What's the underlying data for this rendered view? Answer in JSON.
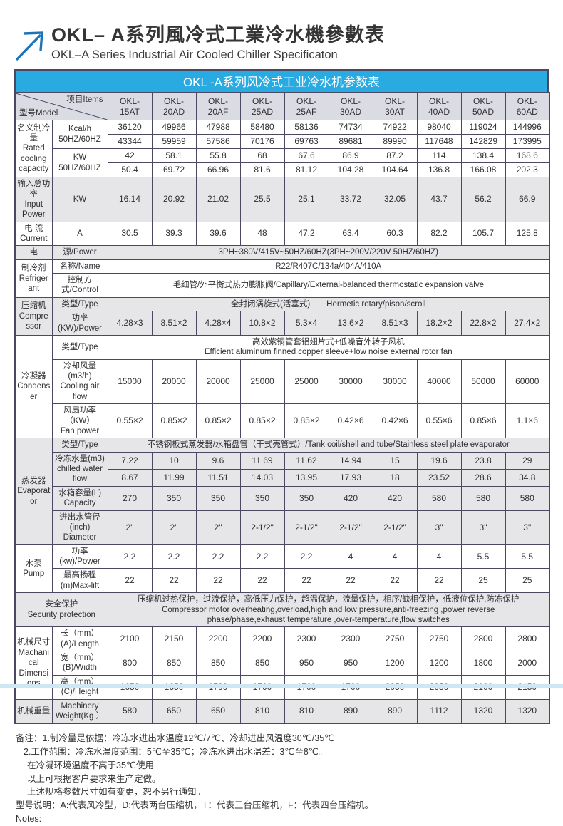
{
  "page": {
    "title_zh": "OKL– A系列風冷式工業冷水機參數表",
    "title_en": "OKL–A Series Industrial Air Cooled Chiller Specificaton"
  },
  "colors": {
    "accent_cyan": "#29abe2",
    "logo_blue": "#1b75bc",
    "header_row_gray": "#dbdce3",
    "section_gray": "#e6e6e8",
    "border": "#4b4961",
    "bottom_strip": "#cfe7f5"
  },
  "table": {
    "caption": "OKL -A系列风冷式工业冷水机参数表",
    "corner": {
      "model": "型号Model",
      "items": "项目Items"
    },
    "models": [
      "OKL-15AT",
      "OKL-20AD",
      "OKL-20AF",
      "OKL-25AD",
      "OKL-25AF",
      "OKL-30AD",
      "OKL-30AT",
      "OKL-40AD",
      "OKL-50AD",
      "OKL-60AD"
    ],
    "sections": [
      {
        "bg": "w",
        "group": "名义制冷量\nRated\ncooling\ncapacity",
        "rows": [
          {
            "label": "Kcal/h\n50HZ/60HZ",
            "values2": [
              [
                "36120",
                "49966",
                "47988",
                "58480",
                "58136",
                "74734",
                "74922",
                "98040",
                "119024",
                "144996"
              ],
              [
                "43344",
                "59959",
                "57586",
                "70176",
                "69763",
                "89681",
                "89990",
                "117648",
                "142829",
                "173995"
              ]
            ]
          },
          {
            "label": "KW\n50HZ/60HZ",
            "values2": [
              [
                "42",
                "58.1",
                "55.8",
                "68",
                "67.6",
                "86.9",
                "87.2",
                "114",
                "138.4",
                "168.6"
              ],
              [
                "50.4",
                "69.72",
                "66.96",
                "81.6",
                "81.12",
                "104.28",
                "104.64",
                "136.8",
                "166.08",
                "202.3"
              ]
            ]
          }
        ]
      },
      {
        "bg": "g",
        "group": "输入总功率\nInput Power",
        "rows": [
          {
            "label": "KW",
            "values": [
              "16.14",
              "20.92",
              "21.02",
              "25.5",
              "25.1",
              "33.72",
              "32.05",
              "43.7",
              "56.2",
              "66.9"
            ]
          }
        ]
      },
      {
        "bg": "w",
        "group": "电 流\nCurrent",
        "rows": [
          {
            "label": "A",
            "values": [
              "30.5",
              "39.3",
              "39.6",
              "48",
              "47.2",
              "63.4",
              "60.3",
              "82.2",
              "105.7",
              "125.8"
            ]
          }
        ]
      },
      {
        "bg": "g",
        "group": "电",
        "rows": [
          {
            "label": "源/Power",
            "merged": "3PH~380V/415V~50HZ/60HZ(3PH~200V/220V  50HZ/60HZ)"
          }
        ]
      },
      {
        "bg": "w",
        "group": "制冷剂\nRefrigerant",
        "rows": [
          {
            "label": "名称/Name",
            "merged": "R22/R407C/134a/404A/410A"
          },
          {
            "label": "控制方式/Control",
            "merged": "毛细管/外平衡式热力膨胀阀/Capillary/External-balanced thermostatic expansion valve"
          }
        ]
      },
      {
        "bg": "g",
        "group": "压缩机\nCompressor",
        "rows": [
          {
            "label": "类型/Type",
            "merged": "全封闭涡旋式(活塞式)　　Hermetic rotary/pison/scroll"
          },
          {
            "label": "功率(KW)/Power",
            "values": [
              "4.28×3",
              "8.51×2",
              "4.28×4",
              "10.8×2",
              "5.3×4",
              "13.6×2",
              "8.51×3",
              "18.2×2",
              "22.8×2",
              "27.4×2"
            ]
          }
        ]
      },
      {
        "bg": "w",
        "group": "冷凝器\nCondenser",
        "rows": [
          {
            "label": "类型/Type",
            "merged": "高效紫铜管套铝翅片式+低噪音外转子风机\nEfficient aluminum finned copper sleeve+low noise external rotor fan"
          },
          {
            "label": "冷却风量(m3/h)\nCooling air flow",
            "values": [
              "15000",
              "20000",
              "20000",
              "25000",
              "25000",
              "30000",
              "30000",
              "40000",
              "50000",
              "60000"
            ]
          },
          {
            "label": "风扇功率（KW）\nFan power",
            "values": [
              "0.55×2",
              "0.85×2",
              "0.85×2",
              "0.85×2",
              "0.85×2",
              "0.42×6",
              "0.42×6",
              "0.55×6",
              "0.85×6",
              "1.1×6"
            ]
          }
        ]
      },
      {
        "bg": "g",
        "group": "蒸发器\nEvaporator",
        "rows": [
          {
            "label": "类型/Type",
            "merged": "不锈钢板式蒸发器/水箱盘管（干式壳管式）/Tank coil/shell and tube/Stainless steel plate evaporator"
          },
          {
            "label": "冷冻水量(m3)\nchilled water flow",
            "values2": [
              [
                "7.22",
                "10",
                "9.6",
                "11.69",
                "11.62",
                "14.94",
                "15",
                "19.6",
                "23.8",
                "29"
              ],
              [
                "8.67",
                "11.99",
                "11.51",
                "14.03",
                "13.95",
                "17.93",
                "18",
                "23.52",
                "28.6",
                "34.8"
              ]
            ]
          },
          {
            "label": "水箱容量(L)\nCapacity",
            "values": [
              "270",
              "350",
              "350",
              "350",
              "350",
              "420",
              "420",
              "580",
              "580",
              "580"
            ]
          },
          {
            "label": "进出水管径(inch)\nDiameter",
            "values": [
              "2\"",
              "2\"",
              "2\"",
              "2-1/2\"",
              "2-1/2\"",
              "2-1/2\"",
              "2-1/2\"",
              "3\"",
              "3\"",
              "3\""
            ]
          }
        ]
      },
      {
        "bg": "w",
        "group": "水泵\nPump",
        "rows": [
          {
            "label": "功率(kw)/Power",
            "values": [
              "2.2",
              "2.2",
              "2.2",
              "2.2",
              "2.2",
              "4",
              "4",
              "4",
              "5.5",
              "5.5"
            ]
          },
          {
            "label": "最高扬程(m)Max-lift",
            "values": [
              "22",
              "22",
              "22",
              "22",
              "22",
              "22",
              "22",
              "22",
              "25",
              "25"
            ]
          }
        ]
      },
      {
        "bg": "g",
        "group": "安全保护\nSecurity protection",
        "span": 2,
        "rows": [
          {
            "merged": "压缩机过热保护，过流保护，高低压力保护，超温保护，流量保护，相序/缺相保护，低液位保护,防冻保护\nCompressor motor overheating,overload,high and low pressure,anti-freezing ,power reverse\nphase/phase,exhaust temperature ,over-temperature,flow switches"
          }
        ]
      },
      {
        "bg": "w",
        "group": "机械尺寸\nMachanical\nDimensions",
        "rows": [
          {
            "label": "长（mm）(A)/Length",
            "values": [
              "2100",
              "2150",
              "2200",
              "2200",
              "2300",
              "2300",
              "2750",
              "2750",
              "2800",
              "2800"
            ]
          },
          {
            "label": "宽（mm）(B)/Width",
            "values": [
              "800",
              "850",
              "850",
              "850",
              "950",
              "950",
              "1200",
              "1200",
              "1800",
              "2000"
            ]
          },
          {
            "label": "高（mm）(C)/Height",
            "values": [
              "1650",
              "1650",
              "1700",
              "1700",
              "1700",
              "1700",
              "2050",
              "2050",
              "2100",
              "2150"
            ]
          }
        ]
      },
      {
        "bg": "g",
        "group": "机械重量",
        "rows": [
          {
            "label": "Machinery\nWeight(Kg ）",
            "values": [
              "580",
              "650",
              "650",
              "810",
              "810",
              "890",
              "890",
              "1112",
              "1320",
              "1320"
            ]
          }
        ]
      }
    ]
  },
  "notes": {
    "lines": [
      "备注：1.制冷量是依据：冷冻水进出水温度12℃/7℃、冷却进出风温度30℃/35℃",
      "2.工作范围：冷冻水温度范围：5℃至35℃；冷冻水进出水温差：3℃至8℃。",
      "在冷凝环境温度不高于35℃使用",
      "以上可根据客户要求来生产定做。",
      "上述规格参数尺寸如有变更，恕不另行通知。",
      "型号说明：A:代表风冷型，D:代表两台压缩机，T：代表三台压缩机，F：代表四台压缩机。",
      "Notes:"
    ]
  }
}
